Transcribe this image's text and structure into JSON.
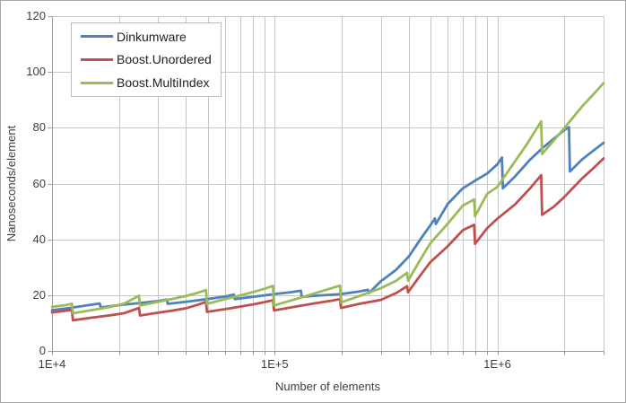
{
  "figure": {
    "background": "#ffffff",
    "border_color": "#a6a6a6",
    "grid_color": "#c6c6c6",
    "axis_color": "#9b9b9b"
  },
  "axes": {
    "y_title": "Nanoseconds/element",
    "x_title": "Number of elements"
  },
  "legend": {
    "position": "top-left",
    "items": [
      {
        "label": "Dinkumware",
        "color": "#4F81BD"
      },
      {
        "label": "Boost.Unordered",
        "color": "#C0504D"
      },
      {
        "label": "Boost.MultiIndex",
        "color": "#9BBB59"
      }
    ]
  },
  "chart_data": {
    "type": "line",
    "x_scale": "log",
    "x_range": [
      10000,
      3000000
    ],
    "y_range": [
      0,
      120
    ],
    "grid": true,
    "legend_position": "top-left",
    "y_tick_labels": [
      {
        "label": "120",
        "value": 120
      },
      {
        "label": "100",
        "value": 100
      },
      {
        "label": "80",
        "value": 80
      },
      {
        "label": "60",
        "value": 60
      },
      {
        "label": "40",
        "value": 40
      },
      {
        "label": "20",
        "value": 20
      },
      {
        "label": "0",
        "value": 0
      }
    ],
    "x_tick_labels": [
      {
        "label": "1E+4",
        "value": 10000
      },
      {
        "label": "1E+5",
        "value": 100000
      },
      {
        "label": "1E+6",
        "value": 1000000
      }
    ],
    "y_grid_values": [
      20,
      40,
      60,
      80,
      100,
      120
    ],
    "x_grid_values": [
      20000,
      30000,
      40000,
      50000,
      60000,
      70000,
      80000,
      90000,
      100000,
      200000,
      300000,
      400000,
      500000,
      600000,
      700000,
      800000,
      900000,
      1000000,
      2000000,
      3000000
    ],
    "x_axis_tick_values": [
      10000,
      20000,
      30000,
      40000,
      50000,
      60000,
      70000,
      80000,
      90000,
      100000,
      200000,
      300000,
      400000,
      500000,
      600000,
      700000,
      800000,
      900000,
      1000000,
      2000000,
      3000000
    ],
    "series": [
      {
        "name": "Dinkumware",
        "color": "#4F81BD",
        "points": [
          [
            10000,
            14.6
          ],
          [
            12000,
            15.4
          ],
          [
            14000,
            16.2
          ],
          [
            16384,
            17.0
          ],
          [
            16548,
            15.6
          ],
          [
            20000,
            16.4
          ],
          [
            25000,
            17.2
          ],
          [
            30000,
            17.9
          ],
          [
            32768,
            18.4
          ],
          [
            33096,
            16.9
          ],
          [
            40000,
            17.6
          ],
          [
            50000,
            18.6
          ],
          [
            60000,
            19.5
          ],
          [
            65536,
            20.2
          ],
          [
            66191,
            18.6
          ],
          [
            80000,
            19.4
          ],
          [
            100000,
            20.4
          ],
          [
            120000,
            21.1
          ],
          [
            131072,
            21.6
          ],
          [
            132383,
            19.4
          ],
          [
            160000,
            19.9
          ],
          [
            200000,
            20.4
          ],
          [
            240000,
            21.3
          ],
          [
            262144,
            21.9
          ],
          [
            264765,
            20.7
          ],
          [
            300000,
            25.0
          ],
          [
            350000,
            29.0
          ],
          [
            400000,
            33.8
          ],
          [
            460000,
            41.0
          ],
          [
            500000,
            45.0
          ],
          [
            524288,
            47.5
          ],
          [
            529531,
            45.5
          ],
          [
            600000,
            52.8
          ],
          [
            700000,
            58.3
          ],
          [
            800000,
            61.2
          ],
          [
            900000,
            63.6
          ],
          [
            1000000,
            66.9
          ],
          [
            1048576,
            69.3
          ],
          [
            1059062,
            58.3
          ],
          [
            1200000,
            62.5
          ],
          [
            1400000,
            68.5
          ],
          [
            1600000,
            72.8
          ],
          [
            1800000,
            76.2
          ],
          [
            2000000,
            79.2
          ],
          [
            2097152,
            80.2
          ],
          [
            2118124,
            64.3
          ],
          [
            2400000,
            68.6
          ],
          [
            2700000,
            71.8
          ],
          [
            3000000,
            74.6
          ]
        ]
      },
      {
        "name": "Boost.Unordered",
        "color": "#C0504D",
        "points": [
          [
            10000,
            13.8
          ],
          [
            11200,
            14.3
          ],
          [
            12289,
            14.7
          ],
          [
            12412,
            11.0
          ],
          [
            15000,
            11.9
          ],
          [
            18000,
            12.7
          ],
          [
            21000,
            13.5
          ],
          [
            24593,
            15.4
          ],
          [
            24839,
            12.7
          ],
          [
            30000,
            13.7
          ],
          [
            35000,
            14.5
          ],
          [
            40000,
            15.3
          ],
          [
            45000,
            16.5
          ],
          [
            49157,
            17.6
          ],
          [
            49649,
            14.0
          ],
          [
            60000,
            15.0
          ],
          [
            70000,
            15.9
          ],
          [
            80000,
            16.7
          ],
          [
            90000,
            17.5
          ],
          [
            98317,
            18.2
          ],
          [
            99300,
            14.5
          ],
          [
            120000,
            15.7
          ],
          [
            150000,
            17.0
          ],
          [
            180000,
            18.0
          ],
          [
            196613,
            18.6
          ],
          [
            198579,
            15.4
          ],
          [
            240000,
            16.9
          ],
          [
            300000,
            18.3
          ],
          [
            350000,
            20.7
          ],
          [
            393241,
            23.2
          ],
          [
            397173,
            21.0
          ],
          [
            450000,
            27.0
          ],
          [
            500000,
            31.8
          ],
          [
            600000,
            37.6
          ],
          [
            700000,
            43.3
          ],
          [
            786433,
            45.2
          ],
          [
            794297,
            38.4
          ],
          [
            900000,
            44.0
          ],
          [
            1000000,
            47.4
          ],
          [
            1200000,
            52.5
          ],
          [
            1400000,
            58.2
          ],
          [
            1572869,
            63.0
          ],
          [
            1588598,
            48.8
          ],
          [
            1800000,
            51.8
          ],
          [
            2000000,
            55.2
          ],
          [
            2400000,
            61.8
          ],
          [
            2700000,
            65.5
          ],
          [
            3000000,
            69.0
          ]
        ]
      },
      {
        "name": "Boost.MultiIndex",
        "color": "#9BBB59",
        "points": [
          [
            10000,
            15.8
          ],
          [
            11500,
            16.4
          ],
          [
            12289,
            16.9
          ],
          [
            12412,
            13.5
          ],
          [
            15000,
            14.6
          ],
          [
            18000,
            15.7
          ],
          [
            21000,
            16.9
          ],
          [
            24593,
            19.8
          ],
          [
            24839,
            16.3
          ],
          [
            30000,
            17.6
          ],
          [
            35000,
            18.7
          ],
          [
            40000,
            19.7
          ],
          [
            45000,
            20.8
          ],
          [
            49157,
            21.8
          ],
          [
            49649,
            16.9
          ],
          [
            60000,
            18.6
          ],
          [
            70000,
            19.9
          ],
          [
            80000,
            21.1
          ],
          [
            90000,
            22.3
          ],
          [
            98317,
            23.3
          ],
          [
            99300,
            16.3
          ],
          [
            115000,
            17.8
          ],
          [
            140000,
            19.8
          ],
          [
            170000,
            21.9
          ],
          [
            196613,
            23.4
          ],
          [
            198579,
            17.4
          ],
          [
            240000,
            19.7
          ],
          [
            300000,
            22.5
          ],
          [
            350000,
            25.1
          ],
          [
            393241,
            28.0
          ],
          [
            397173,
            25.2
          ],
          [
            450000,
            32.6
          ],
          [
            500000,
            38.6
          ],
          [
            600000,
            45.7
          ],
          [
            700000,
            52.1
          ],
          [
            786433,
            54.3
          ],
          [
            794297,
            48.3
          ],
          [
            900000,
            56.3
          ],
          [
            1000000,
            58.8
          ],
          [
            1150000,
            65.8
          ],
          [
            1350000,
            73.8
          ],
          [
            1572869,
            82.3
          ],
          [
            1588598,
            70.6
          ],
          [
            1800000,
            75.6
          ],
          [
            2000000,
            79.9
          ],
          [
            2400000,
            87.6
          ],
          [
            2700000,
            92.0
          ],
          [
            3000000,
            96.0
          ]
        ]
      }
    ]
  }
}
